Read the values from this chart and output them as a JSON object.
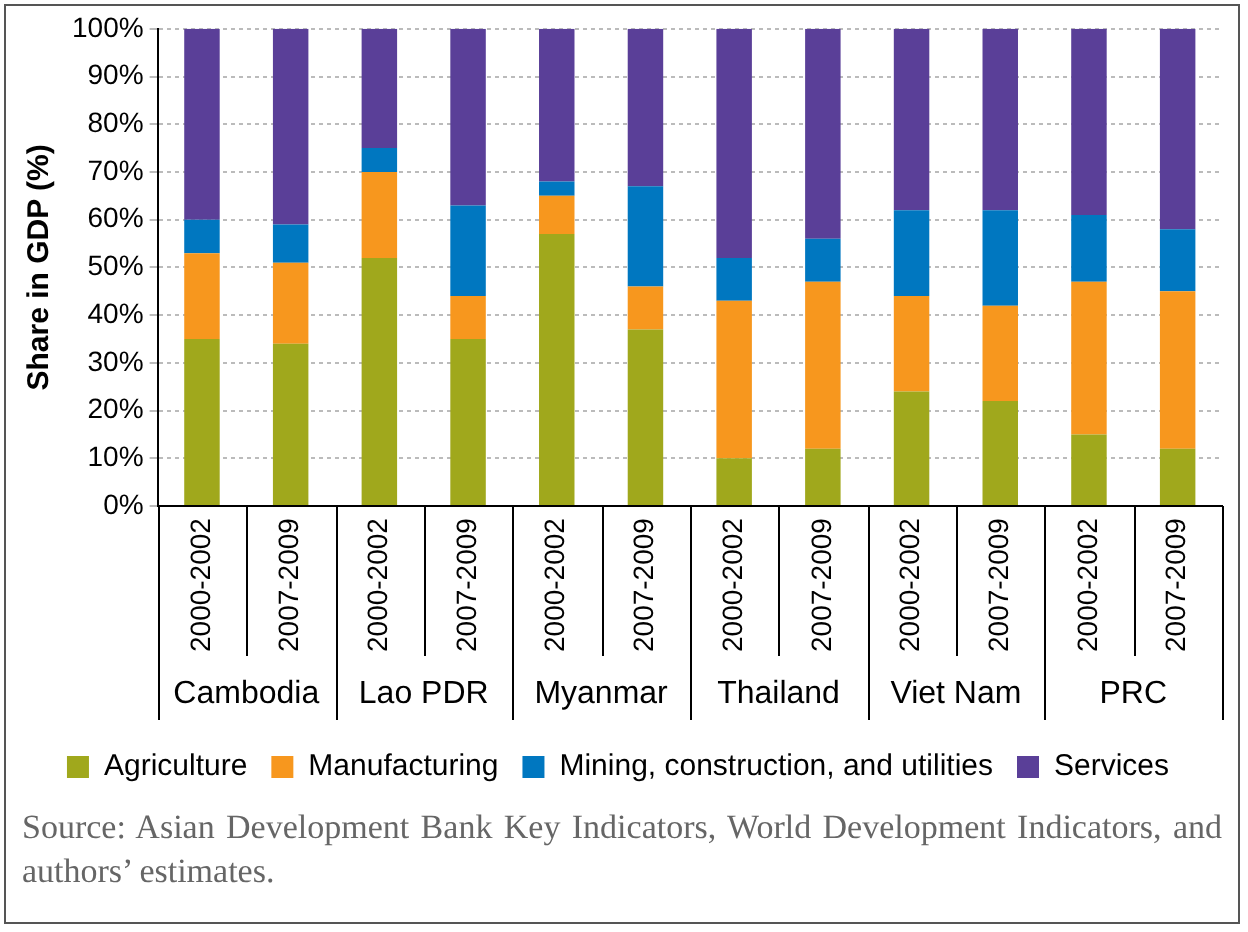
{
  "chart_data": {
    "type": "bar",
    "stacked": true,
    "ylabel": "Share in GDP (%)",
    "categories": [
      "2000-2002",
      "2007-2009",
      "2000-2002",
      "2007-2009",
      "2000-2002",
      "2007-2009",
      "2000-2002",
      "2007-2009",
      "2000-2002",
      "2007-2009",
      "2000-2002",
      "2007-2009"
    ],
    "series": [
      {
        "name": "Agriculture",
        "color": "#a0a81c",
        "values": [
          35,
          34,
          52,
          35,
          57,
          37,
          10,
          12,
          24,
          22,
          15,
          12
        ]
      },
      {
        "name": "Manufacturing",
        "color": "#f7971e",
        "values": [
          18,
          17,
          18,
          9,
          8,
          9,
          33,
          35,
          20,
          20,
          32,
          33
        ]
      },
      {
        "name": "Mining, construction, and utilities",
        "color": "#0077c0",
        "values": [
          7,
          8,
          5,
          19,
          3,
          21,
          9,
          9,
          18,
          20,
          14,
          13
        ]
      },
      {
        "name": "Services",
        "color": "#5a3f98",
        "values": [
          40,
          41,
          25,
          37,
          32,
          33,
          48,
          44,
          38,
          38,
          39,
          42
        ]
      }
    ],
    "ylim": [
      0,
      100
    ],
    "yticks": [
      {
        "value": 0,
        "label": "0%"
      },
      {
        "value": 10,
        "label": "10%"
      },
      {
        "value": 20,
        "label": "20%"
      },
      {
        "value": 30,
        "label": "30%"
      },
      {
        "value": 40,
        "label": "40%"
      },
      {
        "value": 50,
        "label": "50%"
      },
      {
        "value": 60,
        "label": "60%"
      },
      {
        "value": 70,
        "label": "70%"
      },
      {
        "value": 80,
        "label": "80%"
      },
      {
        "value": 90,
        "label": "90%"
      },
      {
        "value": 100,
        "label": "100%"
      }
    ],
    "grid": "y",
    "legend": "bottom",
    "annotations": [
      "Cambodia",
      "Lao PDR",
      "Myanmar",
      "Thailand",
      "Viet Nam",
      "PRC",
      "Source: Asian Development Bank Key Indicators, World Development Indicators, and authors’ estimates."
    ]
  }
}
